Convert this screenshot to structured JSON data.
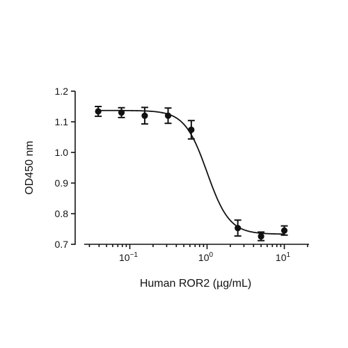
{
  "chart_data": {
    "type": "scatter",
    "title": "",
    "xlabel": "Human ROR2 (µg/mL)",
    "ylabel": "OD450 nm",
    "x_scale": "log",
    "xlim": [
      0.025,
      20
    ],
    "ylim": [
      0.7,
      1.2
    ],
    "x_tick_values": [
      0.1,
      1,
      10
    ],
    "x_tick_labels": [
      {
        "base": "10",
        "exp": "−1"
      },
      {
        "base": "10",
        "exp": "0"
      },
      {
        "base": "10",
        "exp": "1"
      }
    ],
    "y_ticks": [
      "0.7",
      "0.8",
      "0.9",
      "1.0",
      "1.1",
      "1.2"
    ],
    "grid": false,
    "legend": "none",
    "series": [
      {
        "points": [
          {
            "x": 0.039,
            "y": 1.134,
            "err": 0.016
          },
          {
            "x": 0.078,
            "y": 1.13,
            "err": 0.016
          },
          {
            "x": 0.156,
            "y": 1.12,
            "err": 0.027
          },
          {
            "x": 0.313,
            "y": 1.12,
            "err": 0.025
          },
          {
            "x": 0.625,
            "y": 1.074,
            "err": 0.03
          },
          {
            "x": 2.5,
            "y": 0.753,
            "err": 0.026
          },
          {
            "x": 5.0,
            "y": 0.726,
            "err": 0.014
          },
          {
            "x": 10.0,
            "y": 0.745,
            "err": 0.015
          }
        ],
        "fit": {
          "model": "4PL",
          "top": 1.137,
          "bottom": 0.733,
          "ec50": 1.0,
          "hill": 3.0
        }
      }
    ],
    "colors": {
      "marker": "#111111",
      "line": "#111111"
    }
  }
}
